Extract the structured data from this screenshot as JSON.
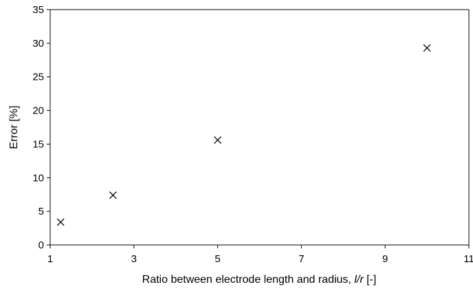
{
  "chart_data": {
    "type": "scatter",
    "title": "",
    "xlabel": {
      "prefix": "Ratio between electrode length and radius, ",
      "italic1": "l",
      "sep": "/",
      "italic2": "r",
      "suffix": " [-]"
    },
    "ylabel": "Error [%]",
    "xlim": [
      1,
      11
    ],
    "ylim": [
      0,
      35
    ],
    "xticks": [
      1,
      3,
      5,
      7,
      9,
      11
    ],
    "yticks": [
      0,
      5,
      10,
      15,
      20,
      25,
      30,
      35
    ],
    "grid": false,
    "marker": "x",
    "series": [
      {
        "x": [
          1.25,
          2.5,
          5,
          10
        ],
        "y": [
          3.4,
          7.4,
          15.6,
          29.3
        ]
      }
    ]
  }
}
